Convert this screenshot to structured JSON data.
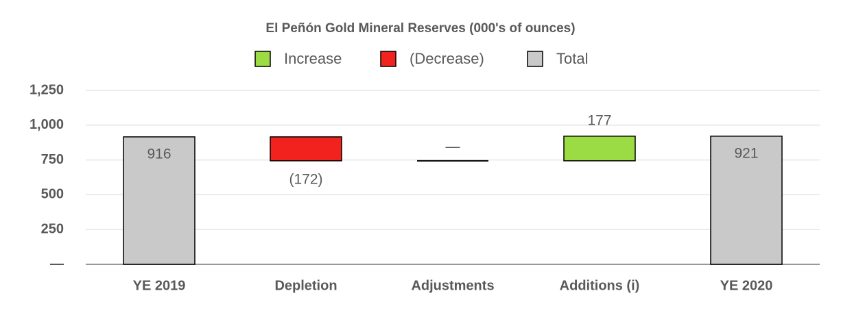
{
  "chart_data": {
    "type": "waterfall",
    "title": "El Peñón Gold Mineral Reserves (000's of ounces)",
    "categories": [
      "YE 2019",
      "Depletion",
      "Adjustments",
      "Additions (i)",
      "YE 2020"
    ],
    "values": [
      916,
      -172,
      0,
      177,
      921
    ],
    "value_labels": [
      "916",
      "(172)",
      "—",
      "177",
      "921"
    ],
    "legend": [
      {
        "name": "Increase",
        "color": "#9bdb43"
      },
      {
        "name": "(Decrease)",
        "color": "#f2231f"
      },
      {
        "name": "Total",
        "color": "#c9c9c9"
      }
    ],
    "ylim": [
      0,
      1250
    ],
    "yticks": [
      {
        "value": 0,
        "label": "—"
      },
      250,
      500,
      750,
      {
        "value": 1000,
        "label": "1,000"
      },
      {
        "value": 1250,
        "label": "1,250"
      }
    ],
    "grid": true
  }
}
